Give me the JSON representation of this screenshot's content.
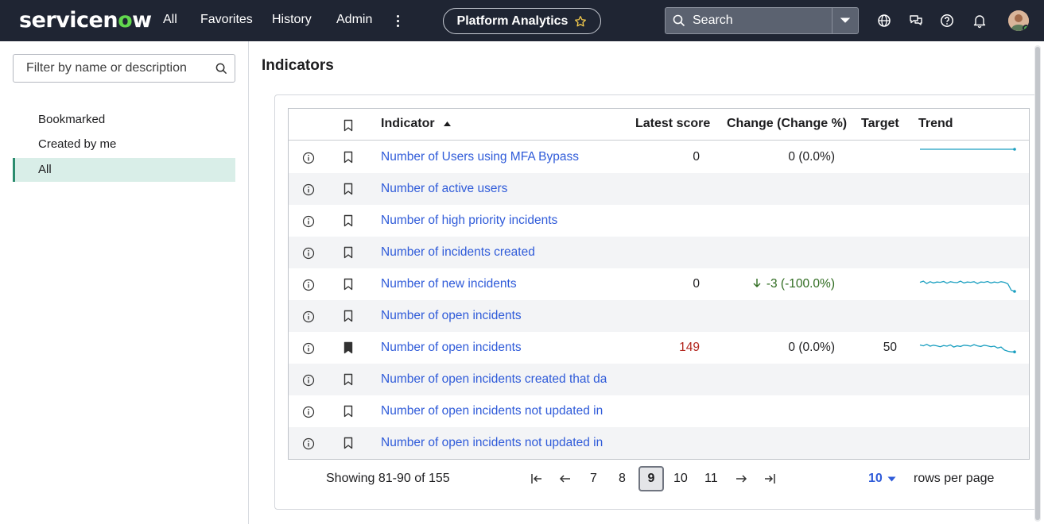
{
  "header": {
    "logo_text": "servicenow",
    "nav": [
      "All",
      "Favorites",
      "History",
      "Admin"
    ],
    "pill_label": "Platform Analytics",
    "search_placeholder": "Search"
  },
  "sidebar": {
    "filter_placeholder": "Filter by name or description",
    "items": [
      {
        "label": "Bookmarked",
        "active": false
      },
      {
        "label": "Created by me",
        "active": false
      },
      {
        "label": "All",
        "active": true
      }
    ]
  },
  "main": {
    "title": "Indicators",
    "columns": [
      "Indicator",
      "Latest score",
      "Change (Change %)",
      "Target",
      "Trend"
    ],
    "rows": [
      {
        "name": "Number of Users using MFA Bypass",
        "bookmarked": false,
        "score": "0",
        "score_red": false,
        "change": "0 (0.0%)",
        "change_down": false,
        "target": "",
        "trend": [
          5,
          5,
          5,
          5,
          5,
          5,
          5,
          5,
          5,
          5,
          5,
          5,
          5,
          5,
          5,
          5,
          5,
          5,
          5,
          5
        ]
      },
      {
        "name": "Number of active users",
        "bookmarked": false,
        "score": "",
        "score_red": false,
        "change": "",
        "change_down": false,
        "target": "",
        "trend": null
      },
      {
        "name": "Number of high priority incidents",
        "bookmarked": false,
        "score": "",
        "score_red": false,
        "change": "",
        "change_down": false,
        "target": "",
        "trend": null
      },
      {
        "name": "Number of incidents created",
        "bookmarked": false,
        "score": "",
        "score_red": false,
        "change": "",
        "change_down": false,
        "target": "",
        "trend": null
      },
      {
        "name": "Number of new incidents",
        "bookmarked": false,
        "score": "0",
        "score_red": false,
        "change": "-3 (-100.0%)",
        "change_down": true,
        "target": "",
        "trend": [
          3,
          3.4,
          2.6,
          3.2,
          2.8,
          3.1,
          3,
          3.3,
          2.7,
          3.2,
          3,
          2.9,
          3.4,
          2.8,
          3.1,
          3,
          3.2,
          2.6,
          3.1,
          3,
          3.3,
          2.8,
          3.1,
          2.9,
          3.2,
          3,
          2.5,
          0.4,
          0
        ]
      },
      {
        "name": "Number of open incidents",
        "bookmarked": false,
        "score": "",
        "score_red": false,
        "change": "",
        "change_down": false,
        "target": "",
        "trend": null
      },
      {
        "name": "Number of open incidents",
        "bookmarked": true,
        "score": "149",
        "score_red": true,
        "change": "0 (0.0%)",
        "change_down": false,
        "target": "50",
        "trend": [
          3.3,
          3,
          3.5,
          2.9,
          3.2,
          3,
          2.7,
          3.1,
          2.9,
          3.3,
          2.6,
          3,
          2.8,
          3.2,
          3.1,
          2.9,
          3.4,
          3,
          2.8,
          3.2,
          3,
          2.7,
          2.9,
          2.3,
          2.6,
          1.6,
          1.2,
          1,
          1
        ]
      },
      {
        "name": "Number of open incidents created that da",
        "bookmarked": false,
        "score": "",
        "score_red": false,
        "change": "",
        "change_down": false,
        "target": "",
        "trend": null
      },
      {
        "name": "Number of open incidents not updated in",
        "bookmarked": false,
        "score": "",
        "score_red": false,
        "change": "",
        "change_down": false,
        "target": "",
        "trend": null
      },
      {
        "name": "Number of open incidents not updated in",
        "bookmarked": false,
        "score": "",
        "score_red": false,
        "change": "",
        "change_down": false,
        "target": "",
        "trend": null
      }
    ]
  },
  "pagination": {
    "showing": "Showing 81-90 of 155",
    "pages": [
      "7",
      "8",
      "9",
      "10",
      "11"
    ],
    "current": "9",
    "rows_per_page": "10",
    "rows_per_page_label": "rows per page"
  },
  "colors": {
    "header_bg": "#1f2533",
    "link": "#2f5bd9",
    "trend": "#1a9fc0",
    "active_nav": "#d9eee8"
  }
}
